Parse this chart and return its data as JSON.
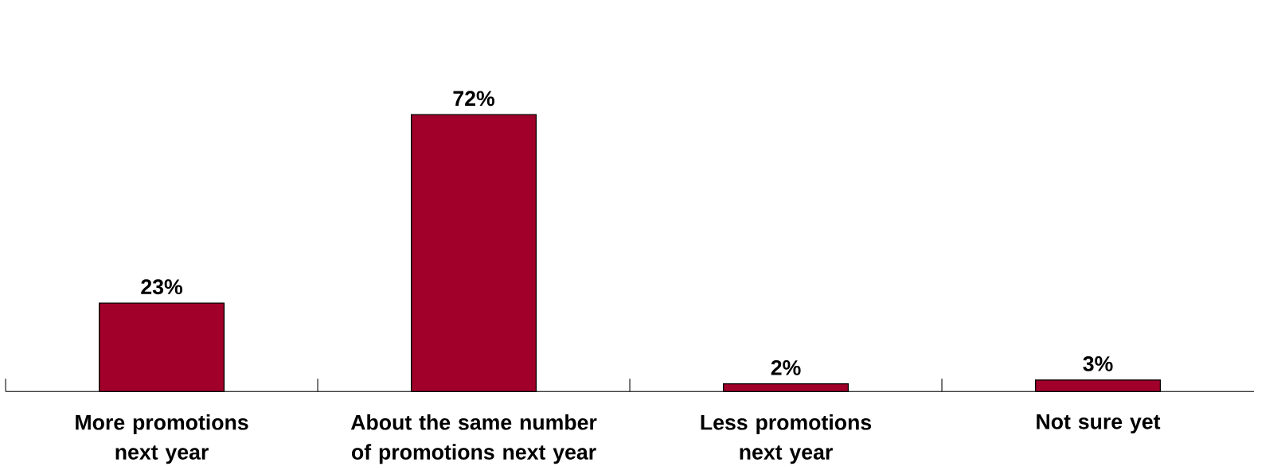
{
  "chart_data": {
    "type": "bar",
    "categories": [
      "More promotions next year",
      "About the same number of promotions next year",
      "Less promotions next year",
      "Not sure yet"
    ],
    "values": [
      23,
      72,
      2,
      3
    ],
    "value_labels": [
      "23%",
      "72%",
      "2%",
      "3%"
    ],
    "color": "#a0002a",
    "grid": false
  }
}
